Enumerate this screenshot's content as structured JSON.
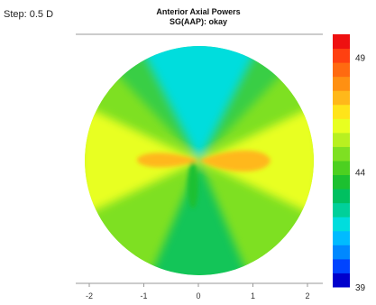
{
  "step_label": "Step: 0.5 D",
  "chart_data": {
    "type": "heatmap",
    "title": "Anterior Axial Powers",
    "subtitle": "SG(AAP): okay",
    "x_ticks": [
      "-2",
      "-1",
      "0",
      "1",
      "2"
    ],
    "x_tick_values": [
      -2,
      -1,
      0,
      1,
      2
    ],
    "xlim": [
      -2.1,
      2.1
    ],
    "colorbar": {
      "min": 39,
      "max": 50,
      "ticks": [
        {
          "value": 49,
          "label": "49"
        },
        {
          "value": 44,
          "label": "44"
        },
        {
          "value": 39,
          "label": "39"
        }
      ],
      "step": 0.5,
      "colors": [
        "#0000cc",
        "#0044ff",
        "#0088ff",
        "#00bbff",
        "#00dddd",
        "#00d09a",
        "#00c060",
        "#1cc030",
        "#4cd020",
        "#7ee022",
        "#b8f020",
        "#e8ff20",
        "#ffe41a",
        "#ffb81a",
        "#ff9012",
        "#ff6a10",
        "#ff4010",
        "#ee1010"
      ]
    },
    "map": {
      "background_power": 44.5,
      "regions": [
        {
          "name": "superior-steep-lobe",
          "power": 41.7
        },
        {
          "name": "inferior-steep-lobe",
          "power": 42.8
        },
        {
          "name": "nasal-flat-band",
          "power": 46.2
        },
        {
          "name": "temporal-flat-band",
          "power": 46.2
        },
        {
          "name": "nasal-peak",
          "power": 47.2
        },
        {
          "name": "temporal-peak",
          "power": 47.2
        }
      ]
    }
  }
}
